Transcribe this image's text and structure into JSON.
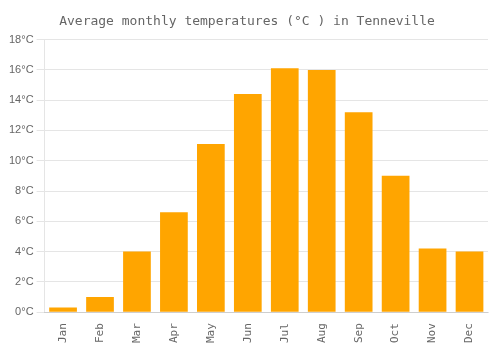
{
  "chart_data": {
    "type": "bar",
    "title": "Average monthly temperatures (°C ) in Tenneville",
    "categories": [
      "Jan",
      "Feb",
      "Mar",
      "Apr",
      "May",
      "Jun",
      "Jul",
      "Aug",
      "Sep",
      "Oct",
      "Nov",
      "Dec"
    ],
    "values": [
      0.3,
      1.0,
      4.0,
      6.6,
      11.1,
      14.4,
      16.1,
      16.0,
      13.2,
      9.0,
      4.2,
      4.0
    ],
    "color": "#FFA500",
    "ylim": [
      0,
      18
    ],
    "yticks": [
      {
        "value": 0,
        "label": "0°C"
      },
      {
        "value": 2,
        "label": "2°C"
      },
      {
        "value": 4,
        "label": "4°C"
      },
      {
        "value": 6,
        "label": "6°C"
      },
      {
        "value": 8,
        "label": "8°C"
      },
      {
        "value": 10,
        "label": "10°C"
      },
      {
        "value": 12,
        "label": "12°C"
      },
      {
        "value": 14,
        "label": "14°C"
      },
      {
        "value": 16,
        "label": "16°C"
      },
      {
        "value": 18,
        "label": "18°C"
      }
    ],
    "grid": true
  }
}
